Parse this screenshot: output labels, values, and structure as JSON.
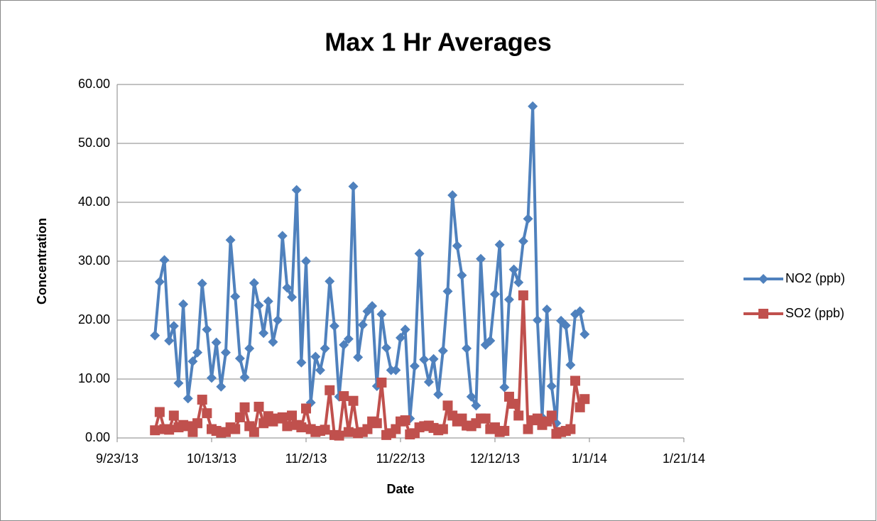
{
  "chart_data": {
    "type": "line",
    "title": "Max 1 Hr Averages",
    "x_label": "Date",
    "y_label": "Concentration",
    "x": [
      "10/1/13",
      "10/2/13",
      "10/3/13",
      "10/4/13",
      "10/5/13",
      "10/6/13",
      "10/7/13",
      "10/8/13",
      "10/9/13",
      "10/10/13",
      "10/11/13",
      "10/12/13",
      "10/13/13",
      "10/14/13",
      "10/15/13",
      "10/16/13",
      "10/17/13",
      "10/18/13",
      "10/19/13",
      "10/20/13",
      "10/21/13",
      "10/22/13",
      "10/23/13",
      "10/24/13",
      "10/25/13",
      "10/26/13",
      "10/27/13",
      "10/28/13",
      "10/29/13",
      "10/30/13",
      "10/31/13",
      "11/1/13",
      "11/2/13",
      "11/3/13",
      "11/4/13",
      "11/5/13",
      "11/6/13",
      "11/7/13",
      "11/8/13",
      "11/9/13",
      "11/10/13",
      "11/11/13",
      "11/12/13",
      "11/13/13",
      "11/14/13",
      "11/15/13",
      "11/16/13",
      "11/17/13",
      "11/18/13",
      "11/19/13",
      "11/20/13",
      "11/21/13",
      "11/22/13",
      "11/23/13",
      "11/24/13",
      "11/25/13",
      "11/26/13",
      "11/27/13",
      "11/28/13",
      "11/29/13",
      "11/30/13",
      "12/1/13",
      "12/2/13",
      "12/3/13",
      "12/4/13",
      "12/5/13",
      "12/6/13",
      "12/7/13",
      "12/8/13",
      "12/9/13",
      "12/10/13",
      "12/11/13",
      "12/12/13",
      "12/13/13",
      "12/14/13",
      "12/15/13",
      "12/16/13",
      "12/17/13",
      "12/18/13",
      "12/19/13",
      "12/20/13",
      "12/21/13",
      "12/22/13",
      "12/23/13",
      "12/24/13",
      "12/25/13",
      "12/26/13",
      "12/27/13",
      "12/28/13",
      "12/29/13",
      "12/30/13",
      "12/31/13"
    ],
    "series": [
      {
        "name": "NO2 (ppb)",
        "color": "#4f81bd",
        "marker": "diamond",
        "values": [
          17.4,
          26.5,
          30.2,
          16.5,
          19.0,
          9.3,
          22.7,
          6.7,
          13.0,
          14.5,
          26.2,
          18.4,
          10.2,
          16.2,
          8.7,
          14.5,
          33.6,
          24.0,
          13.5,
          10.3,
          15.2,
          26.3,
          22.5,
          17.8,
          23.2,
          16.3,
          20.0,
          34.3,
          25.5,
          23.9,
          42.1,
          12.8,
          30.0,
          6.0,
          13.8,
          11.5,
          15.2,
          26.6,
          19.0,
          7.0,
          15.8,
          16.8,
          42.7,
          13.7,
          19.2,
          21.5,
          22.4,
          8.8,
          21.0,
          15.3,
          11.5,
          11.5,
          17.0,
          18.4,
          3.3,
          12.2,
          31.3,
          13.3,
          9.5,
          13.4,
          7.4,
          14.8,
          24.9,
          41.2,
          32.6,
          27.6,
          15.2,
          7.0,
          5.5,
          30.4,
          15.8,
          16.5,
          24.4,
          32.8,
          8.6,
          23.5,
          28.6,
          26.4,
          33.4,
          37.2,
          56.3,
          20.0,
          3.5,
          21.8,
          8.8,
          2.5,
          19.9,
          19.1,
          12.4,
          21.0,
          21.5,
          17.6
        ]
      },
      {
        "name": "SO2 (ppb)",
        "color": "#c0504d",
        "marker": "square",
        "values": [
          1.3,
          4.4,
          1.5,
          1.4,
          3.8,
          1.8,
          2.2,
          2.0,
          1.0,
          2.5,
          6.5,
          4.2,
          1.5,
          1.2,
          0.9,
          1.0,
          1.8,
          1.5,
          3.5,
          5.2,
          2.0,
          1.0,
          5.3,
          2.5,
          3.7,
          2.8,
          3.3,
          3.5,
          2.0,
          3.8,
          2.2,
          1.8,
          5.0,
          1.5,
          1.0,
          1.2,
          1.4,
          8.1,
          0.5,
          0.4,
          7.1,
          1.0,
          6.3,
          0.8,
          1.0,
          1.5,
          2.8,
          2.5,
          9.4,
          0.5,
          0.8,
          1.5,
          2.8,
          3.0,
          0.6,
          0.8,
          1.8,
          2.0,
          2.1,
          1.7,
          1.3,
          1.5,
          5.5,
          3.8,
          2.8,
          3.3,
          2.1,
          2.0,
          2.5,
          3.3,
          3.3,
          1.5,
          1.8,
          1.0,
          1.2,
          7.0,
          5.8,
          3.8,
          24.2,
          1.5,
          3.0,
          3.3,
          2.2,
          2.8,
          3.8,
          0.7,
          1.0,
          1.2,
          1.5,
          9.7,
          5.2,
          6.6
        ]
      }
    ],
    "xlim": [
      "9/23/13",
      "1/21/14"
    ],
    "xticks": [
      "9/23/13",
      "10/13/13",
      "11/2/13",
      "11/22/13",
      "12/12/13",
      "1/1/14",
      "1/21/14"
    ],
    "ylim": [
      0,
      60
    ],
    "yticks": [
      {
        "value": 0,
        "label": "0.00"
      },
      {
        "value": 10,
        "label": "10.00"
      },
      {
        "value": 20,
        "label": "20.00"
      },
      {
        "value": 30,
        "label": "30.00"
      },
      {
        "value": 40,
        "label": "40.00"
      },
      {
        "value": 50,
        "label": "50.00"
      },
      {
        "value": 60,
        "label": "60.00"
      }
    ],
    "grid": true,
    "legend": "right"
  }
}
